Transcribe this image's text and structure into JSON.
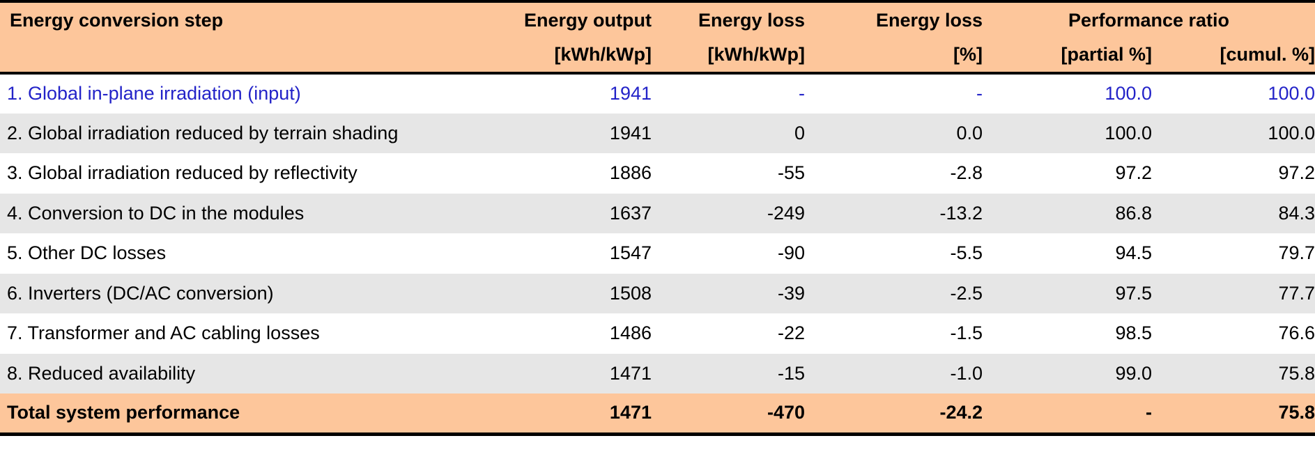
{
  "header": {
    "step": "Energy conversion step",
    "output_label": "Energy output",
    "output_unit": "[kWh/kWp]",
    "loss_kwh_label": "Energy loss",
    "loss_kwh_unit": "[kWh/kWp]",
    "loss_pct_label": "Energy loss",
    "loss_pct_unit": "[%]",
    "pr_group_label": "Performance ratio",
    "pr_partial_unit": "[partial %]",
    "pr_cumul_unit": "[cumul. %]"
  },
  "rows": [
    {
      "step": "1. Global in-plane irradiation (input)",
      "output": "1941",
      "loss_kwh": "-",
      "loss_pct": "-",
      "pr_partial": "100.0",
      "pr_cumul": "100.0"
    },
    {
      "step": "2. Global irradiation reduced by terrain shading",
      "output": "1941",
      "loss_kwh": "0",
      "loss_pct": "0.0",
      "pr_partial": "100.0",
      "pr_cumul": "100.0"
    },
    {
      "step": "3. Global irradiation reduced by reflectivity",
      "output": "1886",
      "loss_kwh": "-55",
      "loss_pct": "-2.8",
      "pr_partial": "97.2",
      "pr_cumul": "97.2"
    },
    {
      "step": "4. Conversion to DC in the modules",
      "output": "1637",
      "loss_kwh": "-249",
      "loss_pct": "-13.2",
      "pr_partial": "86.8",
      "pr_cumul": "84.3"
    },
    {
      "step": "5. Other DC losses",
      "output": "1547",
      "loss_kwh": "-90",
      "loss_pct": "-5.5",
      "pr_partial": "94.5",
      "pr_cumul": "79.7"
    },
    {
      "step": "6. Inverters (DC/AC conversion)",
      "output": "1508",
      "loss_kwh": "-39",
      "loss_pct": "-2.5",
      "pr_partial": "97.5",
      "pr_cumul": "77.7"
    },
    {
      "step": "7. Transformer and AC cabling losses",
      "output": "1486",
      "loss_kwh": "-22",
      "loss_pct": "-1.5",
      "pr_partial": "98.5",
      "pr_cumul": "76.6"
    },
    {
      "step": "8. Reduced availability",
      "output": "1471",
      "loss_kwh": "-15",
      "loss_pct": "-1.0",
      "pr_partial": "99.0",
      "pr_cumul": "75.8"
    }
  ],
  "total": {
    "step": "Total system performance",
    "output": "1471",
    "loss_kwh": "-470",
    "loss_pct": "-24.2",
    "pr_partial": "-",
    "pr_cumul": "75.8"
  },
  "colors": {
    "peach": "#FDC69B",
    "stripe": "#E6E6E6",
    "blue-row": "#2323C8",
    "border": "#000000",
    "text": "#000000",
    "bg": "#FFFFFF"
  }
}
